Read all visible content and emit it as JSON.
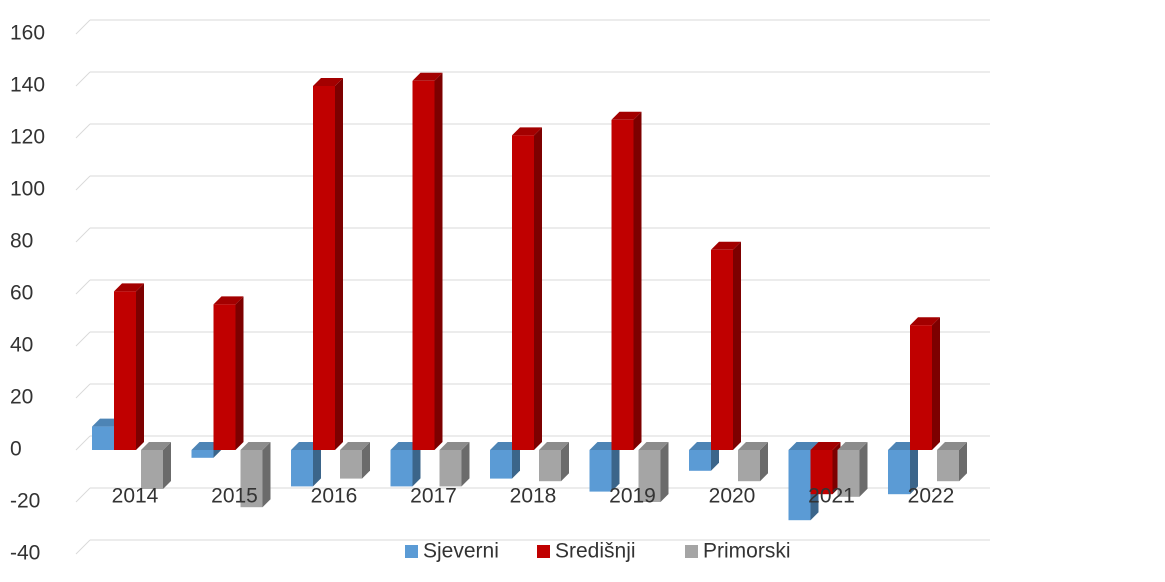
{
  "chart_data": {
    "type": "bar",
    "categories": [
      "2014",
      "2015",
      "2016",
      "2017",
      "2018",
      "2019",
      "2020",
      "2021",
      "2022"
    ],
    "series": [
      {
        "name": "Sjeverni",
        "color": "#5b9bd5",
        "values": [
          9,
          -3,
          -14,
          -14,
          -11,
          -16,
          -8,
          -27,
          -17
        ]
      },
      {
        "name": "Središnji",
        "color": "#c00000",
        "values": [
          61,
          56,
          140,
          142,
          121,
          127,
          77,
          -17,
          48
        ]
      },
      {
        "name": "Primorski",
        "color": "#a5a5a5",
        "values": [
          -15,
          -22,
          -11,
          -14,
          -12,
          -20,
          -12,
          -18,
          -12
        ]
      }
    ],
    "ylim": [
      -40,
      160
    ],
    "yticks": [
      -40,
      -20,
      0,
      20,
      40,
      60,
      80,
      100,
      120,
      140,
      160
    ],
    "grid": true,
    "legend": "bottom"
  }
}
